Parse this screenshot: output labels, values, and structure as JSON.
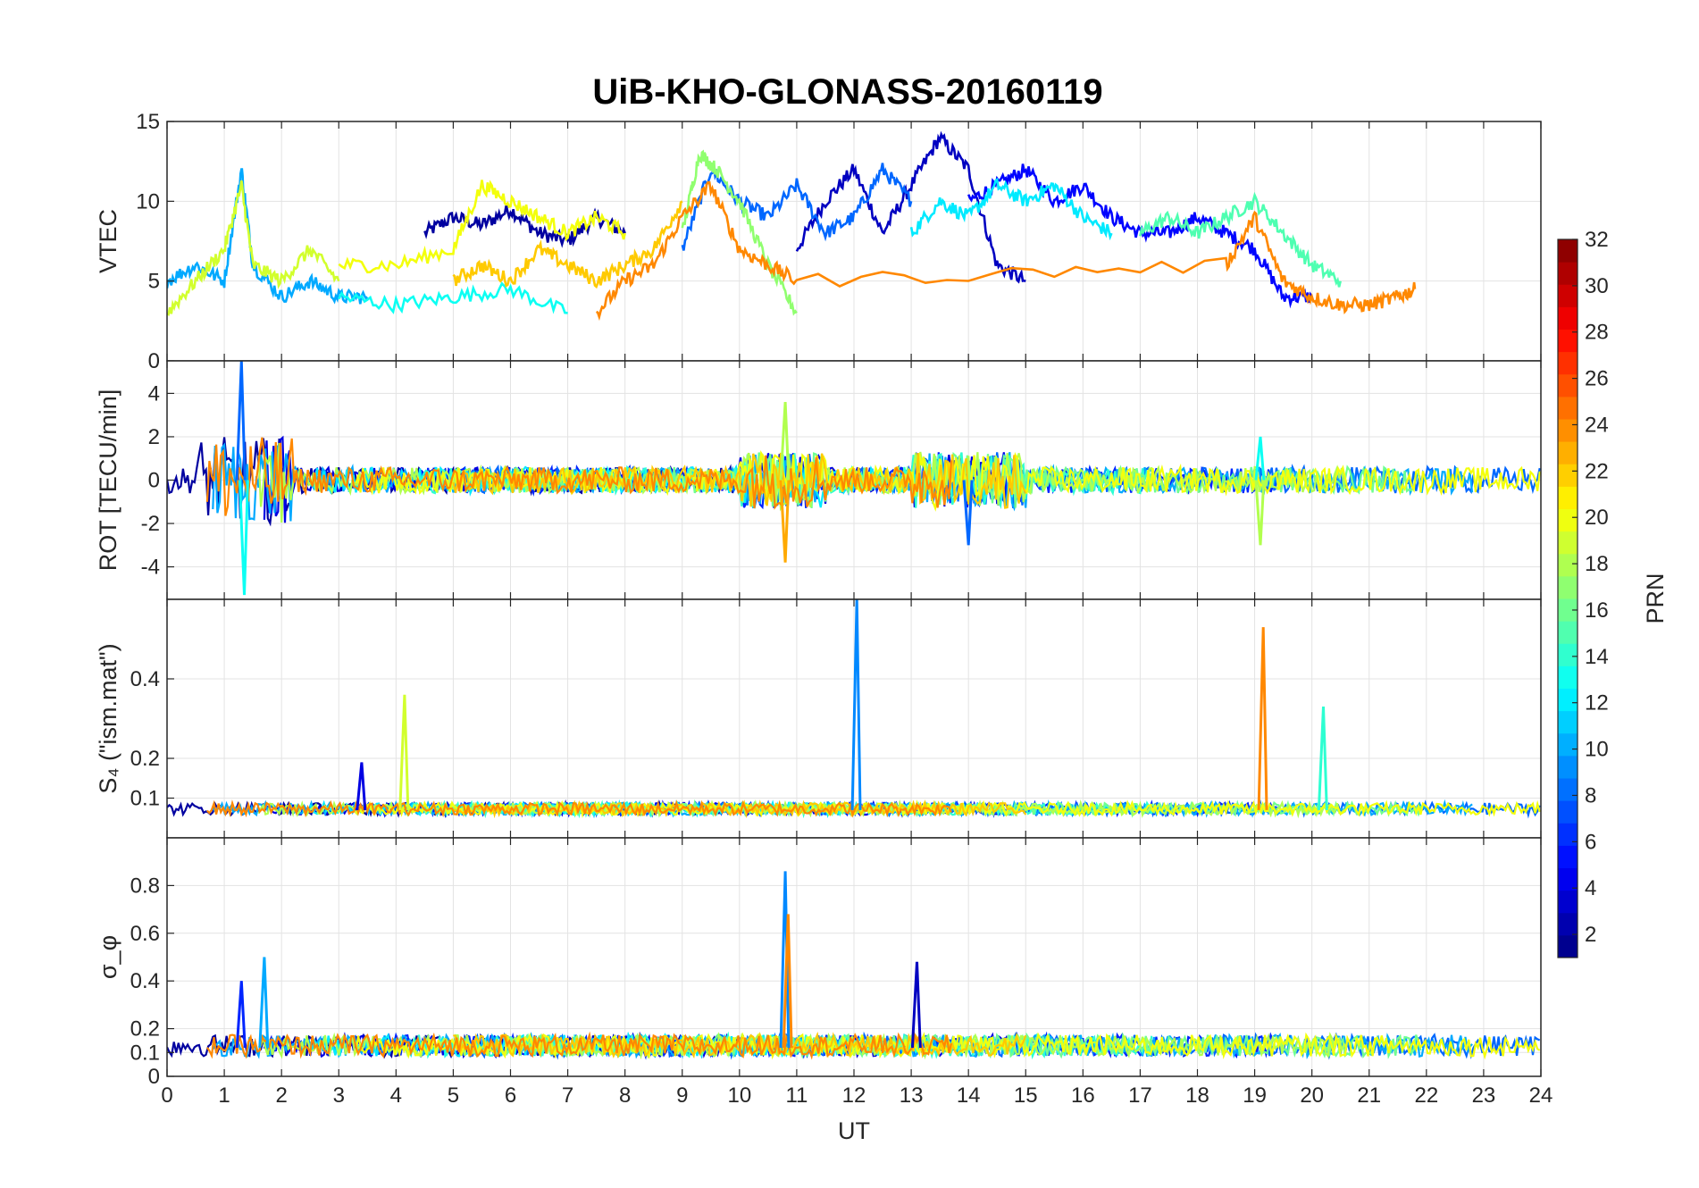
{
  "chart_data": [
    {
      "type": "line",
      "title": "UiB-KHO-GLONASS-20160119",
      "ylabel": "VTEC",
      "xlabel": "",
      "xlim": [
        0,
        24
      ],
      "ylim": [
        0,
        15
      ],
      "yticks": [
        0,
        5,
        10,
        15
      ],
      "grid": true,
      "series_note": "multiple PRN traces, color-coded by PRN",
      "series": [
        {
          "prn": 2,
          "x": [
            4.5,
            5,
            5.5,
            6,
            6.5,
            7,
            7.5,
            8
          ],
          "y": [
            8,
            9,
            8.5,
            9.5,
            8,
            7.5,
            9,
            8
          ]
        },
        {
          "prn": 3,
          "x": [
            11,
            11.5,
            12,
            12.5,
            13,
            13.5,
            14,
            14.5,
            15
          ],
          "y": [
            7,
            10,
            12,
            8,
            11,
            14,
            12,
            6,
            5
          ]
        },
        {
          "prn": 5,
          "x": [
            14,
            14.5,
            15,
            15.5,
            16,
            16.5,
            17,
            17.5,
            18,
            18.5,
            19,
            19.5,
            20
          ],
          "y": [
            10,
            11,
            12,
            10,
            11,
            9,
            8,
            8,
            9,
            8,
            7,
            4,
            4
          ]
        },
        {
          "prn": 8,
          "x": [
            9,
            9.5,
            10,
            10.5,
            11,
            11.5,
            12,
            12.5,
            13
          ],
          "y": [
            7,
            12,
            10,
            9,
            11,
            8,
            9,
            12,
            10
          ]
        },
        {
          "prn": 10,
          "x": [
            0,
            0.5,
            1,
            1.3,
            1.5,
            2,
            2.5,
            3,
            3.5
          ],
          "y": [
            5,
            6,
            5,
            12,
            6,
            4,
            5,
            4,
            4
          ]
        },
        {
          "prn": 12,
          "x": [
            13,
            13.5,
            14,
            14.5,
            15,
            15.5,
            16,
            16.5
          ],
          "y": [
            8,
            10,
            9,
            11,
            10,
            11,
            9,
            8
          ]
        },
        {
          "prn": 13,
          "x": [
            3,
            4,
            5,
            6,
            7
          ],
          "y": [
            4,
            3.5,
            4,
            4.5,
            3
          ]
        },
        {
          "prn": 15,
          "x": [
            17,
            17.5,
            18,
            18.5,
            19,
            19.5,
            20,
            20.5
          ],
          "y": [
            8,
            9,
            8,
            9,
            10,
            8,
            6,
            5
          ]
        },
        {
          "prn": 17,
          "x": [
            9,
            9.3,
            9.6,
            10,
            10.5,
            11
          ],
          "y": [
            8,
            13,
            12,
            10,
            6,
            3
          ]
        },
        {
          "prn": 19,
          "x": [
            0,
            0.5,
            1,
            1.3,
            1.5,
            2,
            2.5,
            3
          ],
          "y": [
            3,
            5,
            7,
            11,
            6,
            5,
            7,
            5
          ]
        },
        {
          "prn": 20,
          "x": [
            3,
            4,
            5,
            5.5,
            6,
            6.5,
            7,
            7.5,
            8
          ],
          "y": [
            6,
            6,
            7,
            11,
            10,
            9,
            8,
            9,
            8
          ]
        },
        {
          "prn": 22,
          "x": [
            5,
            5.5,
            6,
            6.5,
            7,
            7.5,
            8,
            8.5,
            9
          ],
          "y": [
            5,
            6,
            5,
            7,
            6,
            5,
            6,
            7,
            10
          ]
        },
        {
          "prn": 24,
          "x": [
            7.5,
            8,
            8.5,
            9,
            9.5,
            10,
            10.5,
            11,
            18.5,
            19,
            19.5,
            20,
            20.5,
            21,
            21.5,
            21.8
          ],
          "y": [
            3,
            5,
            6,
            9,
            11,
            7,
            6,
            5,
            6,
            9,
            5,
            4,
            3.5,
            3.5,
            4,
            4.5
          ]
        }
      ]
    },
    {
      "type": "line",
      "ylabel": "ROT [TECU/min]",
      "xlim": [
        0,
        24
      ],
      "ylim": [
        -5.5,
        5.5
      ],
      "yticks": [
        -4,
        -2,
        0,
        2,
        4
      ],
      "grid": true,
      "peaks": [
        {
          "x": 1.3,
          "y": 5.5
        },
        {
          "x": 1.35,
          "y": -5.3
        },
        {
          "x": 10.8,
          "y": 3.6
        },
        {
          "x": 10.8,
          "y": -3.8
        },
        {
          "x": 14,
          "y": -3
        },
        {
          "x": 19.1,
          "y": 2
        },
        {
          "x": 19.1,
          "y": -3
        }
      ]
    },
    {
      "type": "line",
      "ylabel": "S₄ (\"ism.mat\")",
      "xlim": [
        0,
        24
      ],
      "ylim": [
        0,
        0.6
      ],
      "yticks": [
        0.1,
        0.2,
        0.4
      ],
      "grid": true,
      "baseline": 0.07,
      "peaks": [
        {
          "prn": 9,
          "x": 12.05,
          "y": 0.6
        },
        {
          "prn": 24,
          "x": 19.15,
          "y": 0.53
        },
        {
          "prn": 14,
          "x": 20.2,
          "y": 0.33
        },
        {
          "prn": 19,
          "x": 4.15,
          "y": 0.36
        },
        {
          "prn": 4,
          "x": 3.4,
          "y": 0.19
        }
      ]
    },
    {
      "type": "line",
      "ylabel": "σ_φ",
      "xlabel": "UT",
      "xlim": [
        0,
        24
      ],
      "ylim": [
        0,
        1
      ],
      "yticks": [
        0,
        0.1,
        0.2,
        0.4,
        0.6,
        0.8
      ],
      "grid": true,
      "baseline": 0.12,
      "peaks": [
        {
          "prn": 9,
          "x": 10.8,
          "y": 0.86
        },
        {
          "prn": 24,
          "x": 10.85,
          "y": 0.68
        },
        {
          "prn": 10,
          "x": 1.7,
          "y": 0.5
        },
        {
          "prn": 3,
          "x": 13.1,
          "y": 0.48
        },
        {
          "prn": 6,
          "x": 1.3,
          "y": 0.4
        }
      ]
    }
  ],
  "xticks": [
    "0",
    "1",
    "2",
    "3",
    "4",
    "5",
    "6",
    "7",
    "8",
    "9",
    "10",
    "11",
    "12",
    "13",
    "14",
    "15",
    "16",
    "17",
    "18",
    "19",
    "20",
    "21",
    "22",
    "23",
    "24"
  ],
  "colorbar": {
    "label": "PRN",
    "ticks": [
      "2",
      "4",
      "6",
      "8",
      "10",
      "12",
      "14",
      "16",
      "18",
      "20",
      "22",
      "24",
      "26",
      "28",
      "30",
      "32"
    ],
    "range": [
      1,
      32
    ],
    "colormap": "jet"
  }
}
